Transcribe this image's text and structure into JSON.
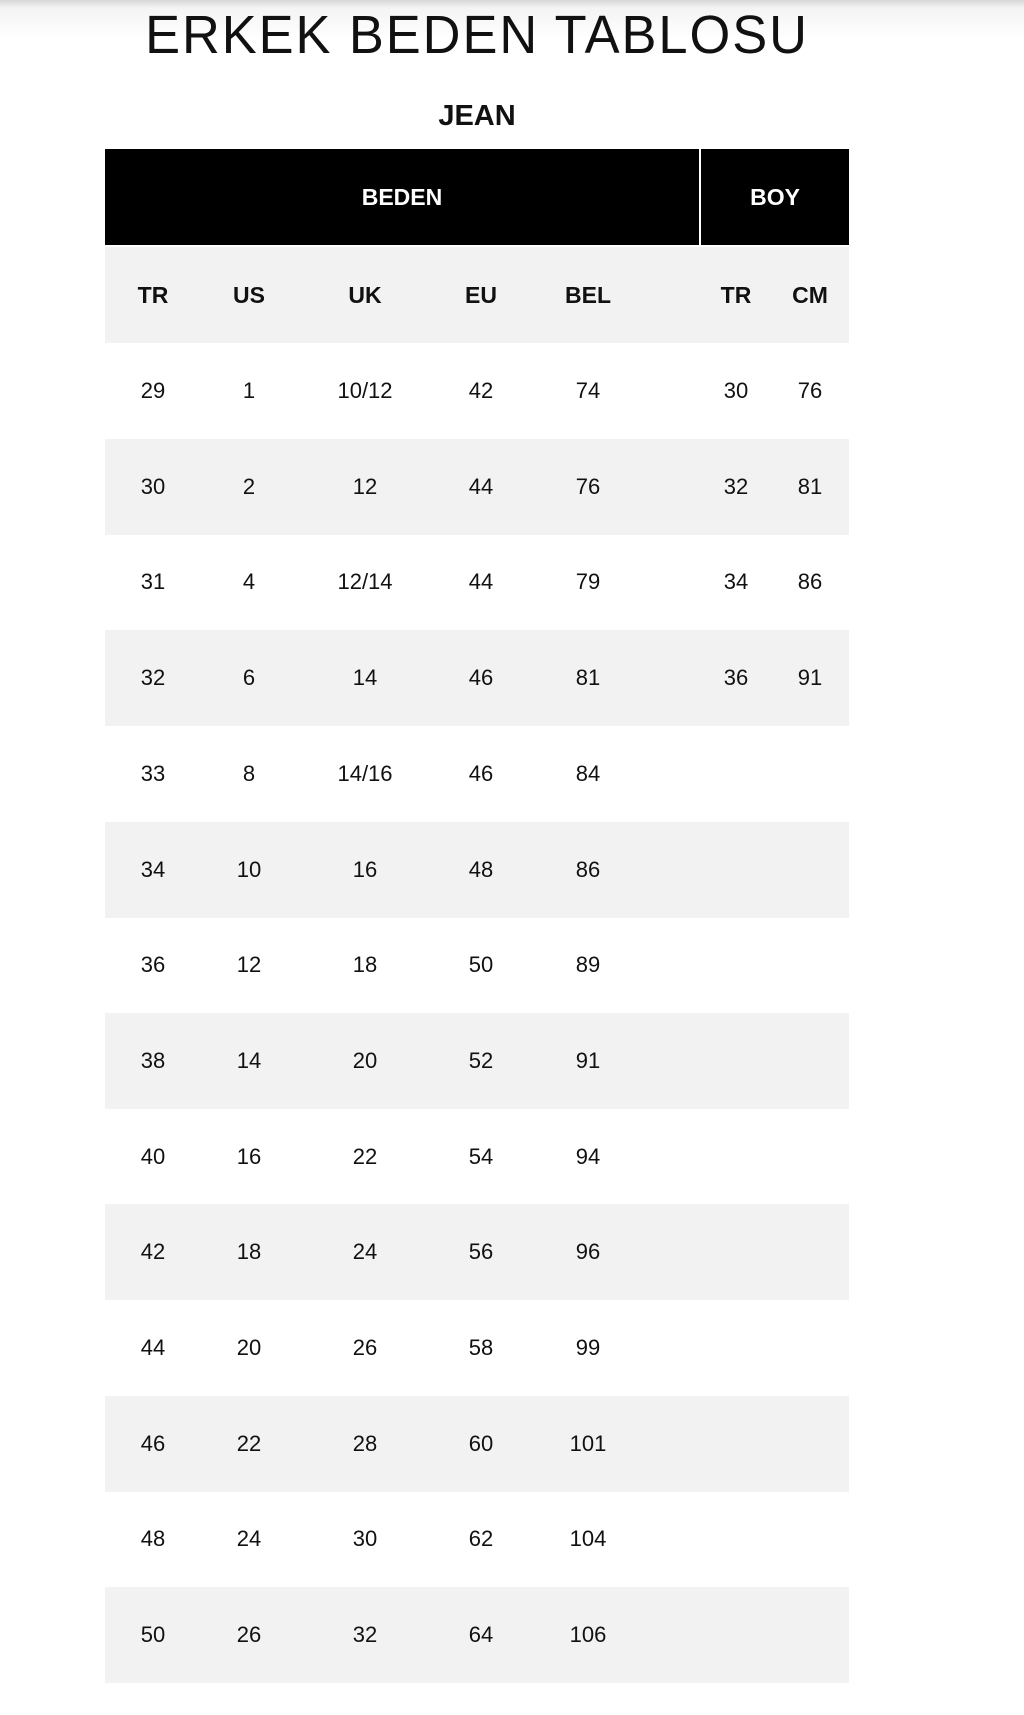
{
  "title": "ERKEK BEDEN TABLOSU",
  "subtitle": "JEAN",
  "group_headers": [
    "BEDEN",
    "BOY"
  ],
  "columns": [
    "TR",
    "US",
    "UK",
    "EU",
    "BEL",
    "TR",
    "CM"
  ],
  "rows": [
    [
      "29",
      "1",
      "10/12",
      "42",
      "74",
      "30",
      "76"
    ],
    [
      "30",
      "2",
      "12",
      "44",
      "76",
      "32",
      "81"
    ],
    [
      "31",
      "4",
      "12/14",
      "44",
      "79",
      "34",
      "86"
    ],
    [
      "32",
      "6",
      "14",
      "46",
      "81",
      "36",
      "91"
    ],
    [
      "33",
      "8",
      "14/16",
      "46",
      "84",
      "",
      ""
    ],
    [
      "34",
      "10",
      "16",
      "48",
      "86",
      "",
      ""
    ],
    [
      "36",
      "12",
      "18",
      "50",
      "89",
      "",
      ""
    ],
    [
      "38",
      "14",
      "20",
      "52",
      "91",
      "",
      ""
    ],
    [
      "40",
      "16",
      "22",
      "54",
      "94",
      "",
      ""
    ],
    [
      "42",
      "18",
      "24",
      "56",
      "96",
      "",
      ""
    ],
    [
      "44",
      "20",
      "26",
      "58",
      "99",
      "",
      ""
    ],
    [
      "46",
      "22",
      "28",
      "60",
      "101",
      "",
      ""
    ],
    [
      "48",
      "24",
      "30",
      "62",
      "104",
      "",
      ""
    ],
    [
      "50",
      "26",
      "32",
      "64",
      "106",
      "",
      ""
    ]
  ]
}
